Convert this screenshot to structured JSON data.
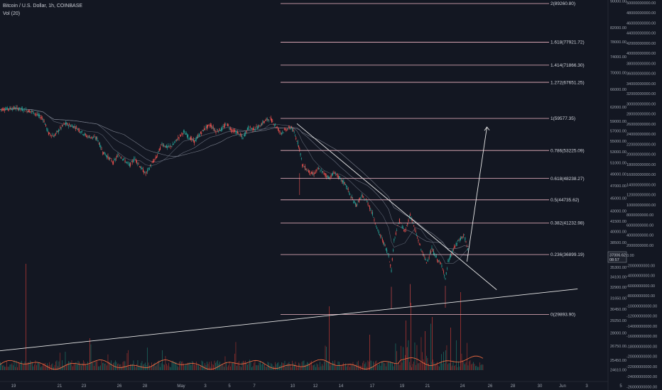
{
  "header": {
    "title": "Bitcoin / U.S. Dollar, 1h, COINBASE",
    "indicator": "Vol (20)"
  },
  "price_badge": {
    "price": "37006.62",
    "countdown": "08:57"
  },
  "colors": {
    "background": "#131722",
    "fib_line": "#f2b8c6",
    "up": "#26a69a",
    "down": "#ef5350",
    "trend": "#e8e8e8",
    "vol_ma": "#ff7043"
  },
  "chart_data": {
    "type": "line",
    "price_axis": {
      "ticks": [
        90000,
        82000,
        78000,
        74000,
        70000,
        66000,
        62000,
        59000,
        57000,
        55000,
        53000,
        51000,
        49000,
        47000,
        45000,
        43000,
        41500,
        40000,
        38500,
        37000,
        35300,
        34100,
        32900,
        31650,
        30450,
        29250,
        28000,
        26750,
        25450,
        24610
      ],
      "tick_labels": [
        "90000.00",
        "82000.00",
        "78000.00",
        "74000.00",
        "70000.00",
        "66000.00",
        "62000.00",
        "59000.00",
        "57000.00",
        "55000.00",
        "53000.00",
        "51000.00",
        "49000.00",
        "47000.00",
        "45000.00",
        "43000.00",
        "41500.00",
        "40000.00",
        "38500.00",
        "37000.00",
        "35300.00",
        "34100.00",
        "32900.00",
        "31650.00",
        "30450.00",
        "29250.00",
        "28000.00",
        "26750.00",
        "25450.00",
        "24610.00"
      ],
      "scale": "log"
    },
    "volume_axis": {
      "tick_labels": [
        "50000000000.00",
        "48000000000.00",
        "46000000000.00",
        "44000000000.00",
        "42000000000.00",
        "40000000000.00",
        "38000000000.00",
        "36000000000.00",
        "34000000000.00",
        "32000000000.00",
        "30000000000.00",
        "28000000000.00",
        "26000000000.00",
        "24000000000.00",
        "22000000000.00",
        "20000000000.00",
        "18000000000.00",
        "16000000000.00",
        "14000000000.00",
        "12000000000.00",
        "10000000000.00",
        "8000000000.00",
        "6000000000.00",
        "4000000000.00",
        "2000000000.00",
        "0.00",
        "-2000000000.00",
        "-4000000000.00",
        "-6000000000.00",
        "-8000000000.00",
        "-10000000000.00",
        "-12000000000.00",
        "-14000000000.00",
        "-16000000000.00",
        "-18000000000.00",
        "-20000000000.00",
        "-22000000000.00",
        "-24000000000.00",
        "-26000000000.00"
      ]
    },
    "x_labels": [
      "19",
      "21",
      "23",
      "26",
      "28",
      "May",
      "3",
      "5",
      "7",
      "10",
      "12",
      "14",
      "17",
      "19",
      "21",
      "24",
      "26",
      "28",
      "30",
      "Jun",
      "3",
      "5"
    ],
    "fib_levels": [
      {
        "label": "2(89260.80)",
        "price": 89260.8
      },
      {
        "label": "1.618(77921.72)",
        "price": 77921.72
      },
      {
        "label": "1.414(71866.30)",
        "price": 71866.3
      },
      {
        "label": "1.272(67651.25)",
        "price": 67651.25
      },
      {
        "label": "1(59577.35)",
        "price": 59577.35
      },
      {
        "label": "0.786(53225.09)",
        "price": 53225.09
      },
      {
        "label": "0.618(48238.27)",
        "price": 48238.27
      },
      {
        "label": "0.5(44735.62)",
        "price": 44735.62
      },
      {
        "label": "0.382(41232.98)",
        "price": 41232.98
      },
      {
        "label": "0.236(36899.19)",
        "price": 36899.19
      },
      {
        "label": "0(29893.90)",
        "price": 29893.9
      }
    ],
    "price_series": [
      [
        0,
        61500
      ],
      [
        3,
        61800
      ],
      [
        6,
        61000
      ],
      [
        8,
        59500
      ],
      [
        9,
        56500
      ],
      [
        10,
        56000
      ],
      [
        12,
        58500
      ],
      [
        14,
        57800
      ],
      [
        16,
        56000
      ],
      [
        18,
        55500
      ],
      [
        19,
        53000
      ],
      [
        20,
        52000
      ],
      [
        21,
        51000
      ],
      [
        22,
        52500
      ],
      [
        23,
        51500
      ],
      [
        24,
        50500
      ],
      [
        25,
        51800
      ],
      [
        26,
        50200
      ],
      [
        27,
        49000
      ],
      [
        28,
        50600
      ],
      [
        29,
        52000
      ],
      [
        30,
        54500
      ],
      [
        31,
        53800
      ],
      [
        32,
        54200
      ],
      [
        33,
        55600
      ],
      [
        34,
        56800
      ],
      [
        35,
        55800
      ],
      [
        36,
        54900
      ],
      [
        37,
        56300
      ],
      [
        38,
        57600
      ],
      [
        39,
        58200
      ],
      [
        40,
        57000
      ],
      [
        41,
        57300
      ],
      [
        42,
        58500
      ],
      [
        43,
        57100
      ],
      [
        44,
        56700
      ],
      [
        45,
        55600
      ],
      [
        46,
        57700
      ],
      [
        47,
        57400
      ],
      [
        48,
        57900
      ],
      [
        49,
        59000
      ],
      [
        50,
        59600
      ],
      [
        51,
        58200
      ],
      [
        52,
        56600
      ],
      [
        53,
        57300
      ],
      [
        54,
        57800
      ],
      [
        55,
        55200
      ],
      [
        55.5,
        53600
      ],
      [
        56,
        50600
      ],
      [
        57,
        49600
      ],
      [
        58,
        48900
      ],
      [
        59,
        49900
      ],
      [
        60,
        49100
      ],
      [
        61,
        48300
      ],
      [
        62,
        49300
      ],
      [
        63,
        48100
      ],
      [
        64,
        47300
      ],
      [
        65,
        45200
      ],
      [
        66,
        43900
      ],
      [
        67,
        45300
      ],
      [
        68,
        44500
      ],
      [
        69,
        42600
      ],
      [
        70,
        40100
      ],
      [
        71,
        38600
      ],
      [
        72,
        36800
      ],
      [
        72.5,
        34900
      ],
      [
        73,
        38900
      ],
      [
        74,
        41600
      ],
      [
        75,
        39900
      ],
      [
        76,
        42500
      ],
      [
        77,
        39900
      ],
      [
        78,
        37600
      ],
      [
        79,
        35900
      ],
      [
        80,
        37600
      ],
      [
        81,
        36300
      ],
      [
        82,
        35300
      ],
      [
        82.5,
        33800
      ],
      [
        83,
        35900
      ],
      [
        84,
        37600
      ],
      [
        85,
        38800
      ],
      [
        86,
        39500
      ],
      [
        86.8,
        37000
      ]
    ],
    "series": [
      {
        "name": "",
        "type": "trendline",
        "points": [
          [
            55,
            58500
          ],
          [
            92,
            32600
          ]
        ]
      },
      {
        "name": "",
        "type": "projection",
        "points": [
          [
            86.5,
            36000
          ],
          [
            90.2,
            57800
          ]
        ]
      },
      {
        "name": "",
        "type": "support",
        "points": [
          [
            0,
            26300
          ],
          [
            107,
            32700
          ]
        ]
      }
    ]
  }
}
